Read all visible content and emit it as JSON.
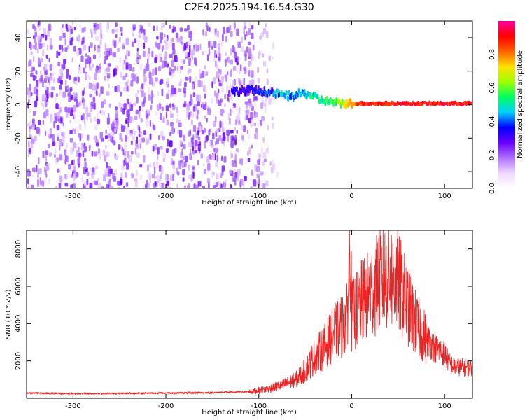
{
  "chart_data": [
    {
      "type": "heatmap",
      "title": "C2E4.2025.194.16.54.G30",
      "xlabel": "Height of straight line (km)",
      "ylabel": "Frequency (Hz)",
      "xlim": [
        -350,
        130
      ],
      "ylim": [
        -50,
        50
      ],
      "x_ticks": [
        -300,
        -200,
        -100,
        0,
        100
      ],
      "y_ticks": [
        -40,
        -20,
        0,
        20,
        40
      ],
      "colorbar": {
        "label": "Normalized spectral amplitude",
        "range": [
          0.0,
          1.0
        ],
        "ticks": [
          0.0,
          0.2,
          0.4,
          0.6,
          0.8
        ],
        "colors": [
          "#ffffff",
          "#f0d8ff",
          "#b070ff",
          "#6a00ff",
          "#0000ff",
          "#00d0ff",
          "#00ff60",
          "#a0ff00",
          "#ffe000",
          "#ff6000",
          "#ff0000",
          "#ff00a0"
        ]
      },
      "signal_track": {
        "x": [
          -130,
          -110,
          -95,
          -85,
          -75,
          -65,
          -55,
          -45,
          -35,
          -25,
          -15,
          -5,
          5,
          20,
          40,
          60,
          80,
          100,
          110,
          130
        ],
        "y": [
          8,
          9,
          8,
          7,
          6,
          5,
          7,
          6,
          3,
          2,
          1,
          1,
          0.5,
          0.5,
          0.5,
          0.5,
          0.5,
          0.5,
          0.5,
          0.5
        ],
        "amplitude": [
          0.3,
          0.3,
          0.35,
          0.4,
          0.45,
          0.45,
          0.45,
          0.5,
          0.5,
          0.55,
          0.6,
          0.7,
          0.85,
          0.9,
          0.9,
          0.9,
          0.9,
          0.9,
          0.9,
          0.9
        ]
      },
      "noise_region_x": [
        -350,
        -80
      ]
    },
    {
      "type": "line",
      "title": "",
      "xlabel": "Height of straight line (km)",
      "ylabel": "SNR (10 * v/v)",
      "xlim": [
        -350,
        130
      ],
      "ylim": [
        0,
        9000
      ],
      "x_ticks": [
        -300,
        -200,
        -100,
        0,
        100
      ],
      "y_ticks": [
        2000,
        4000,
        6000,
        8000
      ],
      "color": "#ee2222",
      "series": [
        {
          "x": [
            -350,
            -300,
            -250,
            -200,
            -150,
            -110,
            -90,
            -75,
            -60,
            -50,
            -40,
            -30,
            -20,
            -10,
            -5,
            -1,
            0,
            5,
            10,
            20,
            30,
            40,
            50,
            60,
            70,
            80,
            90,
            100,
            105,
            110,
            120,
            130
          ],
          "values": [
            280,
            250,
            260,
            280,
            300,
            350,
            500,
            700,
            1000,
            1500,
            2200,
            2700,
            3400,
            3900,
            4300,
            8900,
            4400,
            4700,
            5100,
            5600,
            6300,
            6600,
            6300,
            5000,
            3900,
            3200,
            2700,
            2400,
            1900,
            1700,
            1650,
            1600
          ]
        }
      ]
    }
  ]
}
